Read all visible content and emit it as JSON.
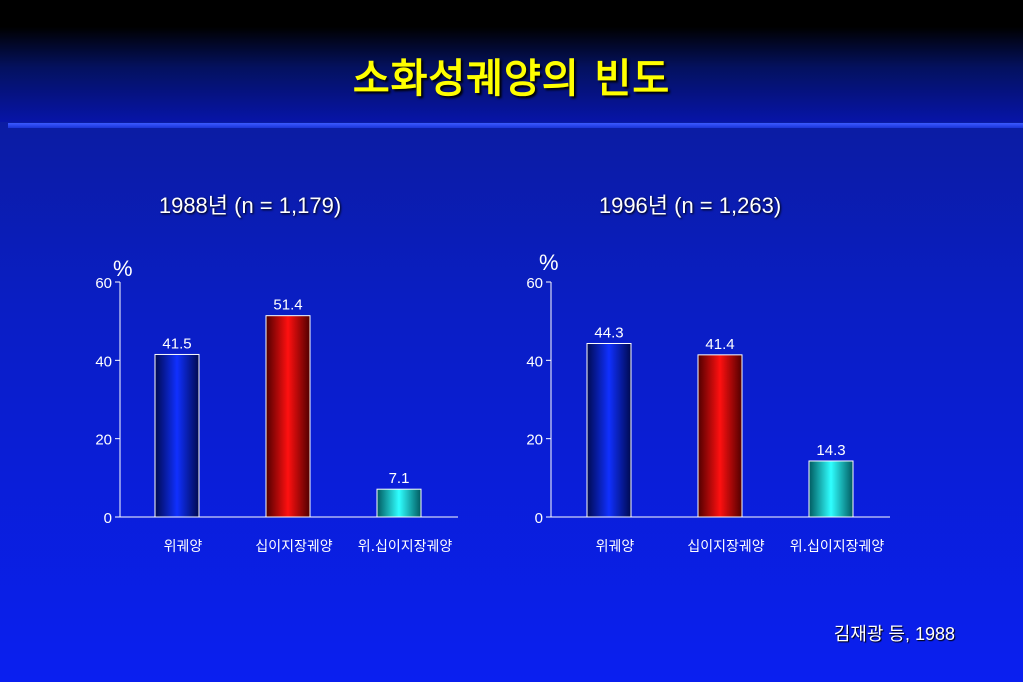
{
  "slide": {
    "title": "소화성궤양의 빈도",
    "citation": "김재광 등, 1988"
  },
  "colors": {
    "bar_series": [
      "#0a1ad8",
      "#e00000",
      "#00d8e0"
    ],
    "axis": "#ffffff",
    "title": "#ffff00"
  },
  "chart_data": [
    {
      "type": "bar",
      "title": "1988년 (n = 1,179)",
      "ylabel": "%",
      "xlabel": "",
      "ylim": [
        0,
        60
      ],
      "yticks": [
        0,
        20,
        40,
        60
      ],
      "categories": [
        "위궤양",
        "십이지장궤양",
        "위.십이지장궤양"
      ],
      "values": [
        41.5,
        51.4,
        7.1
      ],
      "value_labels": [
        "41.5",
        "51.4",
        "7.1"
      ],
      "grid": false,
      "legend": "none"
    },
    {
      "type": "bar",
      "title": "1996년 (n = 1,263)",
      "ylabel": "%",
      "xlabel": "",
      "ylim": [
        0,
        60
      ],
      "yticks": [
        0,
        20,
        40,
        60
      ],
      "categories": [
        "위궤양",
        "십이지장궤양",
        "위.십이지장궤양"
      ],
      "values": [
        44.3,
        41.4,
        14.3
      ],
      "value_labels": [
        "44.3",
        "41.4",
        "14.3"
      ],
      "grid": false,
      "legend": "none"
    }
  ]
}
